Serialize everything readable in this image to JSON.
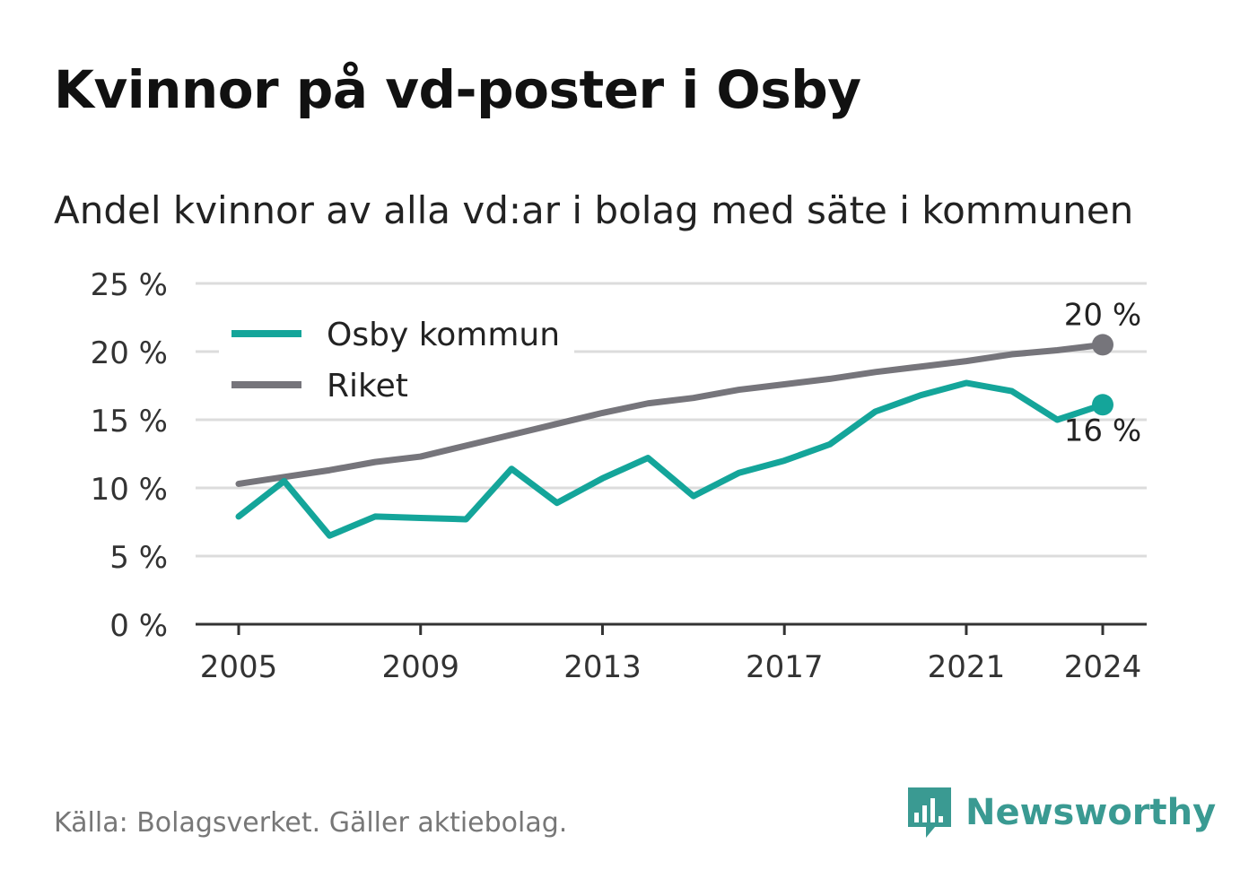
{
  "title": "Kvinnor på vd-poster i Osby",
  "subtitle": "Andel kvinnor av alla vd:ar i bolag med säte i kommunen",
  "source": "Källa: Bolagsverket. Gäller aktiebolag.",
  "brand": {
    "name": "Newsworthy",
    "icon": "newsworthy-logo-icon",
    "color": "#3a9a92"
  },
  "chart_data": {
    "type": "line",
    "x": [
      2005,
      2006,
      2007,
      2008,
      2009,
      2010,
      2011,
      2012,
      2013,
      2014,
      2015,
      2016,
      2017,
      2018,
      2019,
      2020,
      2021,
      2022,
      2023,
      2024
    ],
    "xticks": [
      2005,
      2009,
      2013,
      2017,
      2021,
      2024
    ],
    "xtick_labels": [
      "2005",
      "2009",
      "2013",
      "2017",
      "2021",
      "2024"
    ],
    "ylim": [
      0,
      25
    ],
    "yticks": [
      0,
      5,
      10,
      15,
      20,
      25
    ],
    "ytick_labels": [
      "0 %",
      "5 %",
      "10 %",
      "15 %",
      "20 %",
      "25 %"
    ],
    "grid": true,
    "legend_position": "top-left",
    "series": [
      {
        "name": "Osby kommun",
        "color": "#14a59a",
        "values": [
          7.9,
          10.5,
          6.5,
          7.9,
          7.8,
          7.7,
          11.4,
          8.9,
          10.7,
          12.2,
          9.4,
          11.1,
          12.0,
          13.2,
          15.6,
          16.8,
          17.7,
          17.1,
          15.0,
          16.1
        ],
        "end_label": "16 %"
      },
      {
        "name": "Riket",
        "color": "#76757b",
        "values": [
          10.3,
          10.8,
          11.3,
          11.9,
          12.3,
          13.1,
          13.9,
          14.7,
          15.5,
          16.2,
          16.6,
          17.2,
          17.6,
          18.0,
          18.5,
          18.9,
          19.3,
          19.8,
          20.1,
          20.5
        ],
        "end_label": "20 %"
      }
    ]
  }
}
